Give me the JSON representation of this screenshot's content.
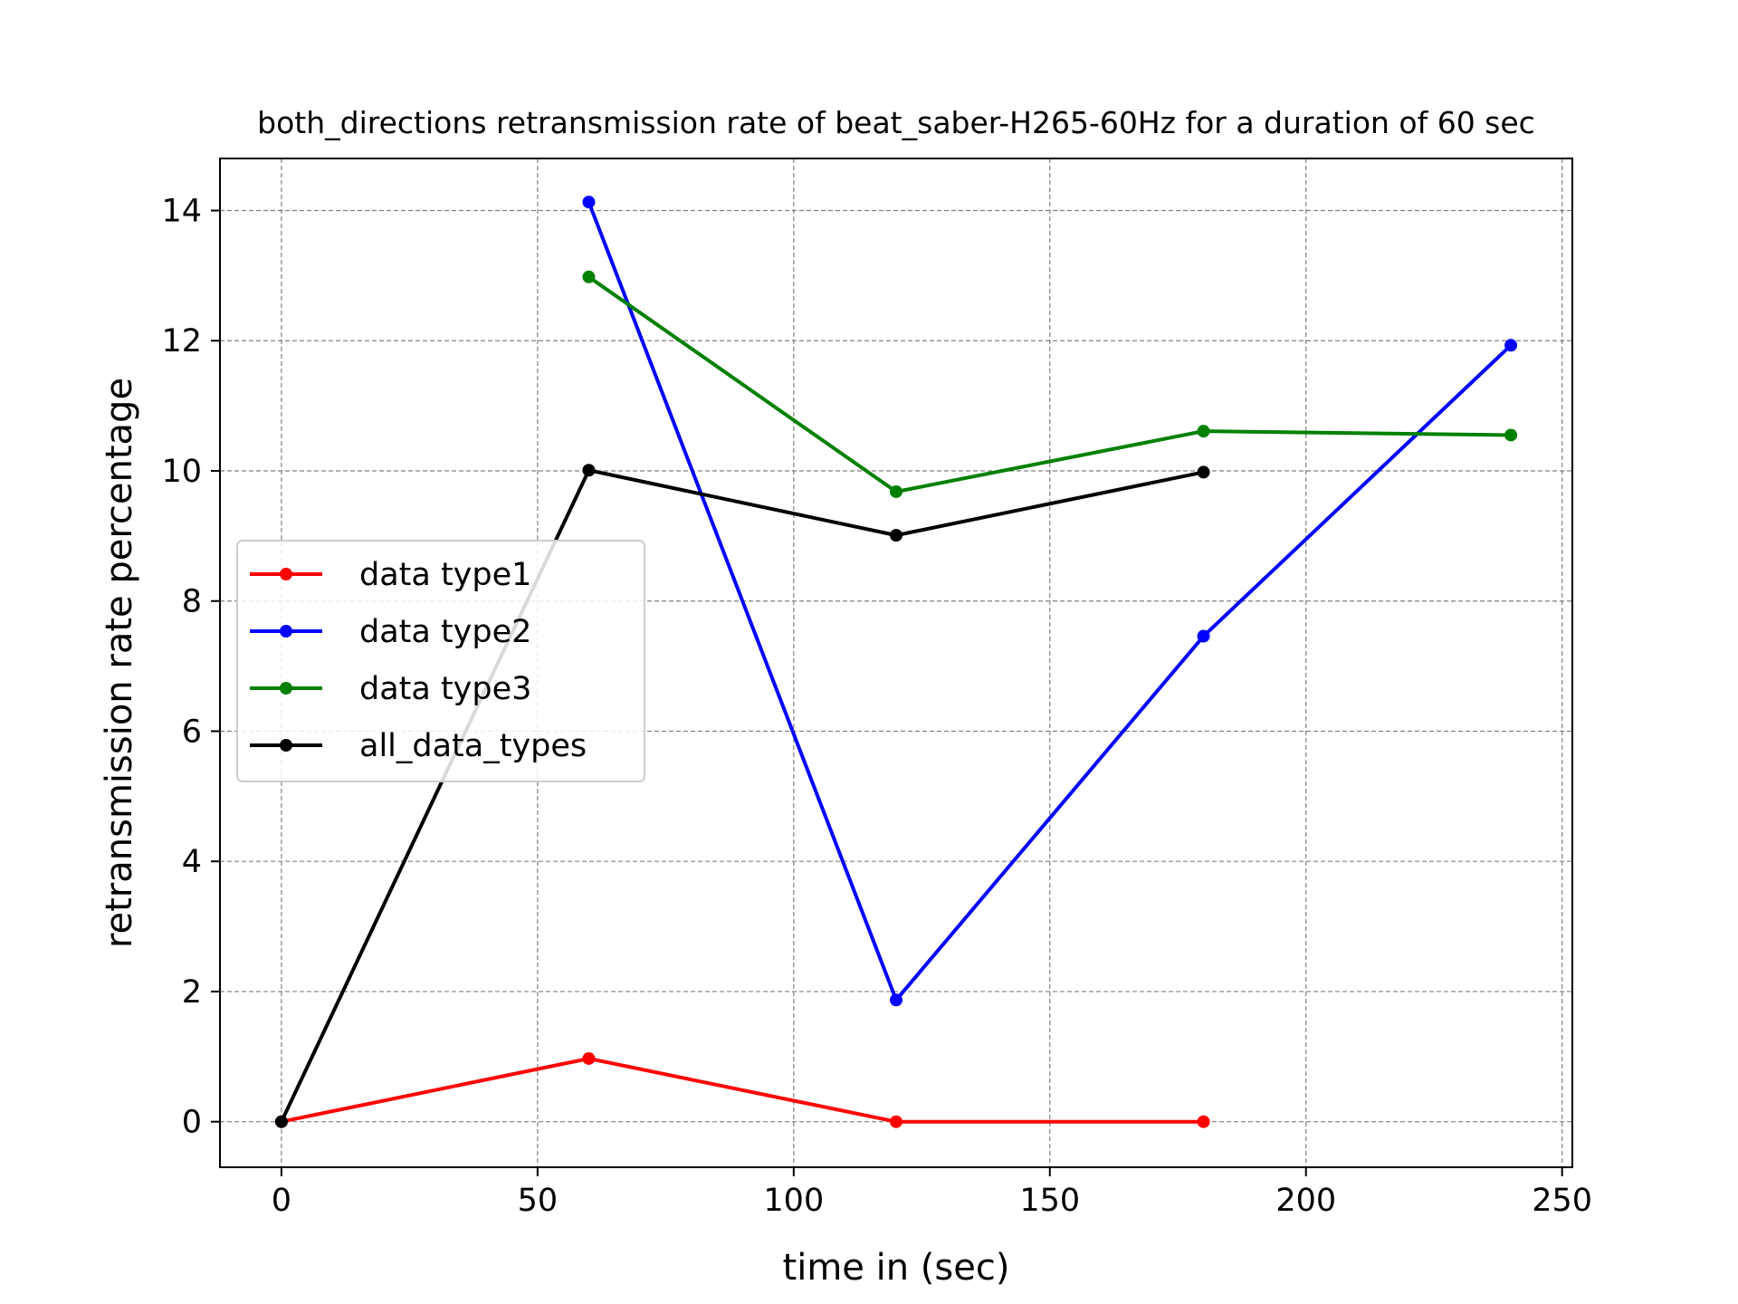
{
  "chart_data": {
    "type": "line",
    "title": "both_directions retransmission rate of beat_saber-H265-60Hz for a duration of 60 sec",
    "xlabel": "time in (sec)",
    "ylabel": "retransmission rate percentage",
    "xlim": [
      -12,
      252
    ],
    "ylim": [
      -0.7,
      14.8
    ],
    "xticks": [
      0,
      50,
      100,
      150,
      200,
      250
    ],
    "yticks": [
      0,
      2,
      4,
      6,
      8,
      10,
      12,
      14
    ],
    "grid": true,
    "legend_position": "center-left",
    "series": [
      {
        "name": "data type1",
        "color": "#ff0000",
        "x": [
          0,
          60,
          120,
          180
        ],
        "y": [
          0,
          0.97,
          0,
          0
        ]
      },
      {
        "name": "data type2",
        "color": "#0000ff",
        "x": [
          60,
          120,
          180,
          240
        ],
        "y": [
          14.13,
          1.87,
          7.46,
          11.93
        ]
      },
      {
        "name": "data type3",
        "color": "#008000",
        "x": [
          60,
          120,
          180,
          240
        ],
        "y": [
          12.98,
          9.68,
          10.61,
          10.55
        ]
      },
      {
        "name": "all_data_types",
        "color": "#000000",
        "x": [
          0,
          60,
          120,
          180
        ],
        "y": [
          0,
          10.01,
          9.01,
          9.98
        ]
      }
    ]
  }
}
